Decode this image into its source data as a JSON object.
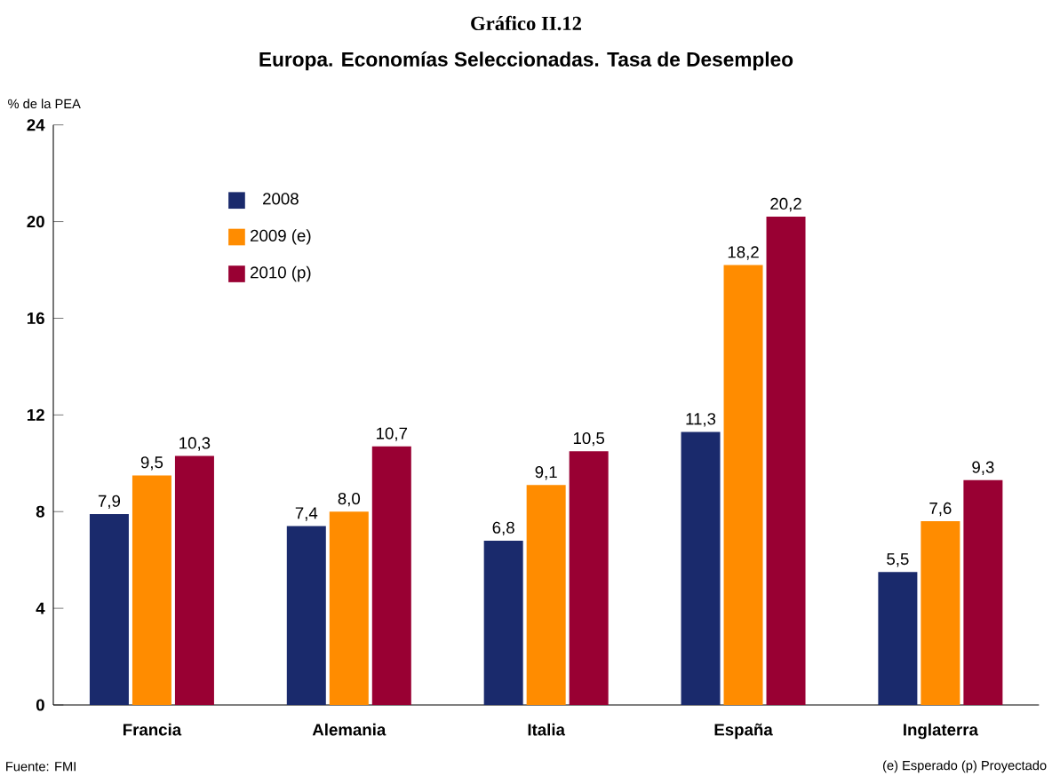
{
  "chart_data": {
    "type": "bar",
    "title": "Gráfico II.12",
    "subtitle": "Europa. Economías Seleccionadas. Tasa de Desempleo",
    "ylabel": "% de la PEA",
    "categories": [
      "Francia",
      "Alemania",
      "Italia",
      "España",
      "Inglaterra"
    ],
    "series": [
      {
        "name": "2008",
        "color": "#1a2a6c",
        "values": [
          7.9,
          7.4,
          6.8,
          11.3,
          5.5
        ],
        "value_labels": [
          "7,9",
          "7,4",
          "6,8",
          "11,3",
          "5,5"
        ]
      },
      {
        "name": "2009 (e)",
        "color": "#ff8c00",
        "values": [
          9.5,
          8.0,
          9.1,
          18.2,
          7.6
        ],
        "value_labels": [
          "9,5",
          "8,0",
          "9,1",
          "18,2",
          "7,6"
        ]
      },
      {
        "name": "2010 (p)",
        "color": "#990033",
        "values": [
          10.3,
          10.7,
          10.5,
          20.2,
          9.3
        ],
        "value_labels": [
          "10,3",
          "10,7",
          "10,5",
          "20,2",
          "9,3"
        ]
      }
    ],
    "ylim": [
      0,
      24
    ],
    "yticks": [
      0,
      4,
      8,
      12,
      16,
      20,
      24
    ],
    "grid": false,
    "legend": "top left",
    "annotations": [
      "Fuente: FMI",
      "(e) Esperado (p) Proyectado"
    ]
  }
}
